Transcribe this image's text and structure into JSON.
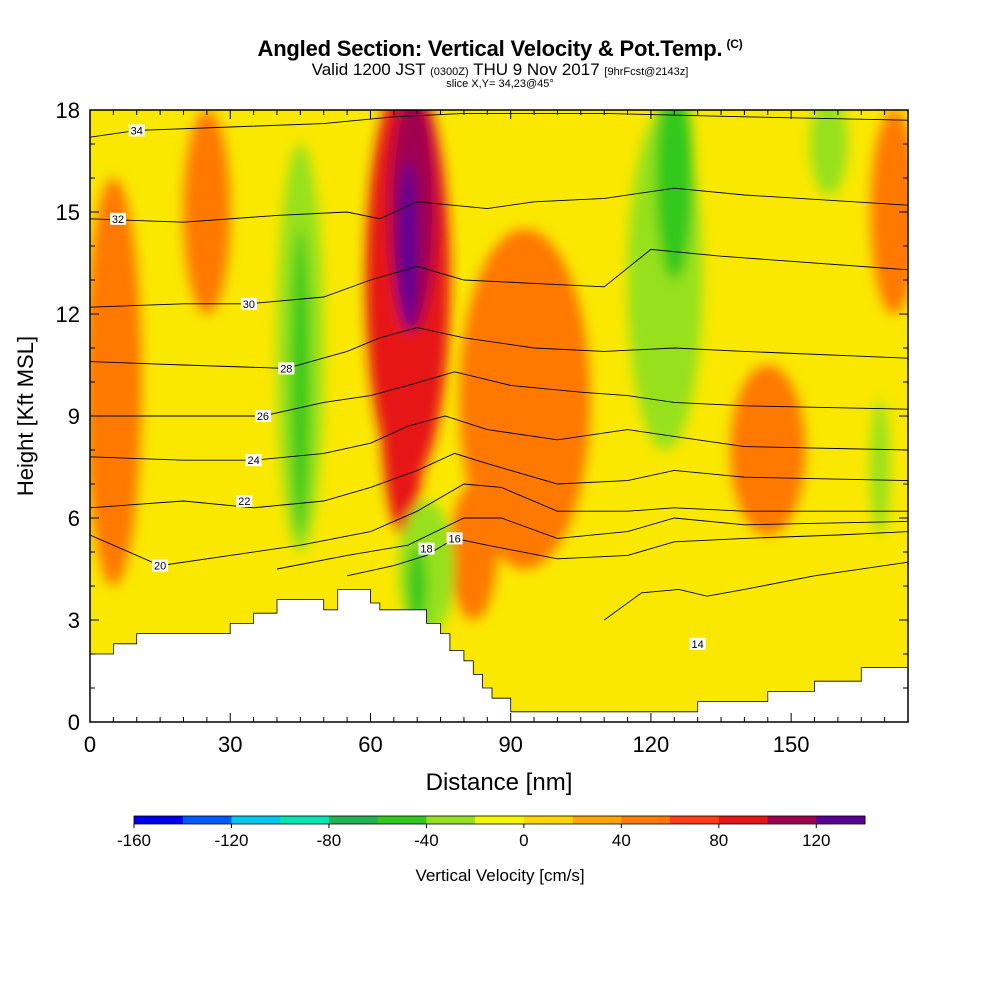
{
  "title": {
    "main": "Angled Section: Vertical Velocity & Pot.Temp.",
    "copyright": "(C)",
    "valid_prefix": "Valid 1200 JST",
    "valid_utc": "(0300Z)",
    "valid_date": "THU 9 Nov 2017",
    "forecast": "[9hrFcst@2143z]",
    "slice": "slice X,Y= 34,23@45°"
  },
  "chart_data": {
    "type": "heatmap",
    "xlabel": "Distance [nm]",
    "ylabel": "Height [Kft MSL]",
    "xlim": [
      0,
      175
    ],
    "ylim": [
      0,
      18
    ],
    "x_ticks": [
      0,
      30,
      60,
      90,
      120,
      150
    ],
    "y_ticks": [
      0,
      3,
      6,
      9,
      12,
      15,
      18
    ],
    "colorbar": {
      "label": "Vertical Velocity [cm/s]",
      "min": -160,
      "max": 140,
      "step": 20,
      "tick_values": [
        -160,
        -120,
        -80,
        -40,
        0,
        40,
        80,
        120
      ],
      "colors": [
        "#0000f0",
        "#005aff",
        "#00c8f0",
        "#00e6b4",
        "#1eb450",
        "#32c81e",
        "#96e11e",
        "#f5f500",
        "#ffd700",
        "#ffa500",
        "#ff7800",
        "#ff3c14",
        "#e61414",
        "#a00050",
        "#5a0096"
      ]
    },
    "terrain_profile": [
      [
        0,
        2.0
      ],
      [
        5,
        2.3
      ],
      [
        10,
        2.6
      ],
      [
        20,
        2.6
      ],
      [
        30,
        2.9
      ],
      [
        35,
        3.2
      ],
      [
        40,
        3.6
      ],
      [
        45,
        3.6
      ],
      [
        50,
        3.3
      ],
      [
        53,
        3.9
      ],
      [
        58,
        3.9
      ],
      [
        60,
        3.5
      ],
      [
        62,
        3.3
      ],
      [
        71,
        3.3
      ],
      [
        72,
        2.9
      ],
      [
        75,
        2.6
      ],
      [
        77,
        2.1
      ],
      [
        80,
        1.8
      ],
      [
        82,
        1.4
      ],
      [
        84,
        1.0
      ],
      [
        86,
        0.7
      ],
      [
        90,
        0.3
      ],
      [
        125,
        0.3
      ],
      [
        130,
        0.6
      ],
      [
        140,
        0.6
      ],
      [
        145,
        0.9
      ],
      [
        150,
        0.9
      ],
      [
        155,
        1.2
      ],
      [
        160,
        1.2
      ],
      [
        165,
        1.6
      ],
      [
        175,
        1.6
      ]
    ],
    "velocity_cells": [
      {
        "x": 5,
        "y": 10.0,
        "rx": 6,
        "ry": 6.0,
        "value": 40
      },
      {
        "x": 25,
        "y": 15.0,
        "rx": 5,
        "ry": 3.0,
        "value": 40
      },
      {
        "x": 93,
        "y": 9.5,
        "rx": 14,
        "ry": 5.0,
        "value": 40
      },
      {
        "x": 82,
        "y": 5.0,
        "rx": 5,
        "ry": 2.0,
        "value": 40
      },
      {
        "x": 172,
        "y": 15.0,
        "rx": 5,
        "ry": 3.0,
        "value": 40
      },
      {
        "x": 145,
        "y": 8.0,
        "rx": 8,
        "ry": 2.5,
        "value": 40
      },
      {
        "x": 68,
        "y": 13.0,
        "rx": 9,
        "ry": 6.0,
        "value": 80
      },
      {
        "x": 67,
        "y": 10.0,
        "rx": 5,
        "ry": 4.5,
        "value": 80
      },
      {
        "x": 69,
        "y": 15.0,
        "rx": 5,
        "ry": 3.5,
        "value": 100
      },
      {
        "x": 68,
        "y": 14.0,
        "rx": 2,
        "ry": 2.5,
        "value": 120
      },
      {
        "x": 45,
        "y": 11.0,
        "rx": 5,
        "ry": 6.0,
        "value": -40
      },
      {
        "x": 45,
        "y": 10.0,
        "rx": 2,
        "ry": 4.5,
        "value": -60
      },
      {
        "x": 123,
        "y": 13.0,
        "rx": 8,
        "ry": 5.0,
        "value": -40
      },
      {
        "x": 125,
        "y": 16.0,
        "rx": 4,
        "ry": 3.0,
        "value": -60
      },
      {
        "x": 158,
        "y": 17.0,
        "rx": 4,
        "ry": 1.5,
        "value": -40
      },
      {
        "x": 169,
        "y": 7.5,
        "rx": 2,
        "ry": 2.0,
        "value": -40
      },
      {
        "x": 72,
        "y": 4.5,
        "rx": 6,
        "ry": 2.0,
        "value": -40
      },
      {
        "x": 70,
        "y": 4.0,
        "rx": 2,
        "ry": 1.2,
        "value": -60
      }
    ],
    "isentropes": [
      {
        "level": 14,
        "label": "14",
        "label_at": [
          130,
          2.3
        ],
        "points": [
          [
            110,
            3.0
          ],
          [
            118,
            3.8
          ],
          [
            126,
            3.9
          ],
          [
            132,
            3.7
          ],
          [
            140,
            3.9
          ],
          [
            155,
            4.3
          ],
          [
            175,
            4.7
          ]
        ]
      },
      {
        "level": 16,
        "label": "16",
        "label_at": [
          78,
          5.4
        ],
        "points": [
          [
            55,
            4.3
          ],
          [
            65,
            4.6
          ],
          [
            72,
            4.9
          ],
          [
            78,
            5.4
          ],
          [
            85,
            5.2
          ],
          [
            100,
            4.8
          ],
          [
            115,
            4.9
          ],
          [
            125,
            5.3
          ],
          [
            140,
            5.4
          ],
          [
            160,
            5.5
          ],
          [
            175,
            5.6
          ]
        ]
      },
      {
        "level": 18,
        "label": "18",
        "label_at": [
          72,
          5.1
        ],
        "points": [
          [
            40,
            4.5
          ],
          [
            55,
            4.9
          ],
          [
            68,
            5.2
          ],
          [
            80,
            6.0
          ],
          [
            88,
            6.0
          ],
          [
            100,
            5.4
          ],
          [
            115,
            5.6
          ],
          [
            125,
            6.0
          ],
          [
            140,
            5.8
          ],
          [
            175,
            5.9
          ]
        ]
      },
      {
        "level": 20,
        "label": "20",
        "label_at": [
          15,
          4.6
        ],
        "points": [
          [
            0,
            5.5
          ],
          [
            15,
            4.6
          ],
          [
            30,
            4.9
          ],
          [
            45,
            5.2
          ],
          [
            60,
            5.6
          ],
          [
            70,
            6.2
          ],
          [
            80,
            7.0
          ],
          [
            88,
            6.9
          ],
          [
            100,
            6.2
          ],
          [
            115,
            6.2
          ],
          [
            125,
            6.3
          ],
          [
            140,
            6.2
          ],
          [
            175,
            6.2
          ]
        ]
      },
      {
        "level": 22,
        "label": "22",
        "label_at": [
          33,
          6.5
        ],
        "points": [
          [
            0,
            6.3
          ],
          [
            20,
            6.5
          ],
          [
            35,
            6.3
          ],
          [
            50,
            6.5
          ],
          [
            60,
            6.9
          ],
          [
            70,
            7.4
          ],
          [
            78,
            7.9
          ],
          [
            85,
            7.6
          ],
          [
            100,
            7.0
          ],
          [
            115,
            7.1
          ],
          [
            125,
            7.4
          ],
          [
            140,
            7.2
          ],
          [
            175,
            7.1
          ]
        ]
      },
      {
        "level": 24,
        "label": "24",
        "label_at": [
          35,
          7.7
        ],
        "points": [
          [
            0,
            7.8
          ],
          [
            20,
            7.7
          ],
          [
            35,
            7.7
          ],
          [
            50,
            7.9
          ],
          [
            60,
            8.2
          ],
          [
            68,
            8.7
          ],
          [
            76,
            9.0
          ],
          [
            85,
            8.6
          ],
          [
            100,
            8.3
          ],
          [
            115,
            8.6
          ],
          [
            125,
            8.4
          ],
          [
            140,
            8.1
          ],
          [
            175,
            8.0
          ]
        ]
      },
      {
        "level": 26,
        "label": "26",
        "label_at": [
          37,
          9.0
        ],
        "points": [
          [
            0,
            9.0
          ],
          [
            20,
            9.0
          ],
          [
            37,
            9.0
          ],
          [
            50,
            9.4
          ],
          [
            60,
            9.6
          ],
          [
            68,
            9.9
          ],
          [
            78,
            10.3
          ],
          [
            90,
            9.9
          ],
          [
            105,
            9.7
          ],
          [
            115,
            9.6
          ],
          [
            125,
            9.4
          ],
          [
            140,
            9.3
          ],
          [
            175,
            9.2
          ]
        ]
      },
      {
        "level": 28,
        "label": "28",
        "label_at": [
          42,
          10.4
        ],
        "points": [
          [
            0,
            10.6
          ],
          [
            20,
            10.5
          ],
          [
            42,
            10.4
          ],
          [
            55,
            10.9
          ],
          [
            62,
            11.3
          ],
          [
            70,
            11.6
          ],
          [
            80,
            11.3
          ],
          [
            95,
            11.0
          ],
          [
            110,
            10.9
          ],
          [
            125,
            11.0
          ],
          [
            140,
            10.9
          ],
          [
            175,
            10.7
          ]
        ]
      },
      {
        "level": 30,
        "label": "30",
        "label_at": [
          34,
          12.3
        ],
        "points": [
          [
            0,
            12.2
          ],
          [
            20,
            12.3
          ],
          [
            34,
            12.3
          ],
          [
            50,
            12.5
          ],
          [
            60,
            13.0
          ],
          [
            70,
            13.4
          ],
          [
            80,
            13.0
          ],
          [
            95,
            12.9
          ],
          [
            110,
            12.8
          ],
          [
            120,
            13.9
          ],
          [
            135,
            13.7
          ],
          [
            175,
            13.3
          ]
        ]
      },
      {
        "level": 32,
        "label": "32",
        "label_at": [
          6,
          14.8
        ],
        "points": [
          [
            0,
            14.8
          ],
          [
            20,
            14.7
          ],
          [
            40,
            14.9
          ],
          [
            55,
            15.0
          ],
          [
            62,
            14.8
          ],
          [
            70,
            15.3
          ],
          [
            85,
            15.1
          ],
          [
            95,
            15.3
          ],
          [
            110,
            15.4
          ],
          [
            125,
            15.7
          ],
          [
            140,
            15.5
          ],
          [
            175,
            15.2
          ]
        ]
      },
      {
        "level": 34,
        "label": "34",
        "label_at": [
          10,
          17.4
        ],
        "points": [
          [
            0,
            17.2
          ],
          [
            10,
            17.4
          ],
          [
            30,
            17.5
          ],
          [
            50,
            17.6
          ],
          [
            65,
            17.8
          ],
          [
            80,
            17.9
          ],
          [
            110,
            17.9
          ],
          [
            140,
            17.8
          ],
          [
            175,
            17.7
          ]
        ]
      }
    ]
  }
}
